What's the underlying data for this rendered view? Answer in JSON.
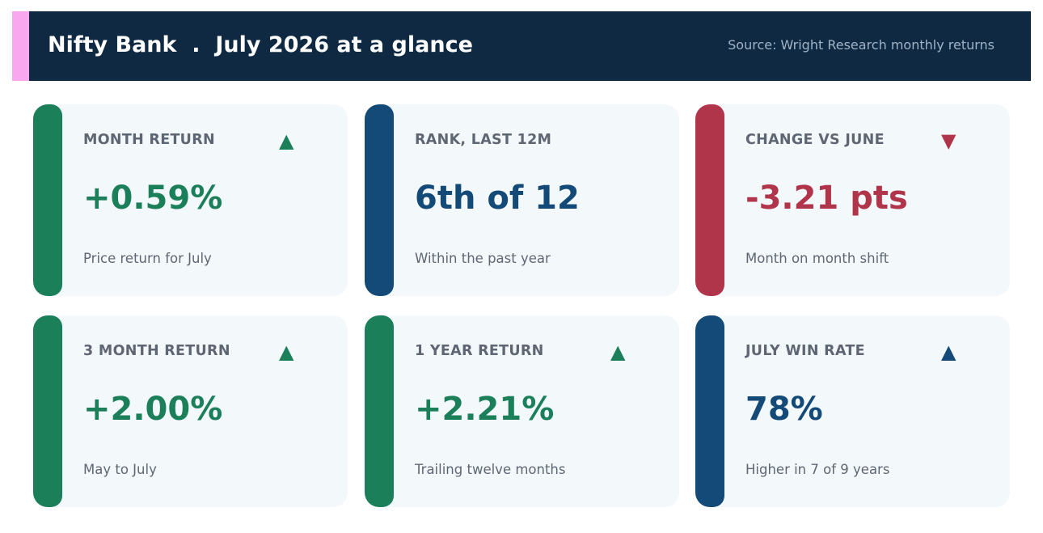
{
  "header": {
    "title": "Nifty Bank  .  July 2026 at a glance",
    "source": "Source: Wright Research monthly returns",
    "accent_color": "#f9a8f0",
    "background_color": "#0f2942"
  },
  "cards": [
    {
      "label": "MONTH RETURN",
      "value": "+0.59%",
      "subtitle": "Price return for July",
      "arrow": "▲",
      "arrow_icon": "triangle-up-icon",
      "color": "#1b7f5a"
    },
    {
      "label": "RANK, LAST 12M",
      "value": "6th of 12",
      "subtitle": "Within the past year",
      "arrow": "",
      "arrow_icon": "",
      "color": "#144a78"
    },
    {
      "label": "CHANGE VS JUNE",
      "value": "-3.21 pts",
      "subtitle": "Month on month shift",
      "arrow": "▼",
      "arrow_icon": "triangle-down-icon",
      "color": "#b0354a"
    },
    {
      "label": "3 MONTH RETURN",
      "value": "+2.00%",
      "subtitle": "May to July",
      "arrow": "▲",
      "arrow_icon": "triangle-up-icon",
      "color": "#1b7f5a"
    },
    {
      "label": "1 YEAR RETURN",
      "value": "+2.21%",
      "subtitle": "Trailing twelve months",
      "arrow": "▲",
      "arrow_icon": "triangle-up-icon",
      "color": "#1b7f5a"
    },
    {
      "label": "JULY WIN RATE",
      "value": "78%",
      "subtitle": "Higher in 7 of 9 years",
      "arrow": "▲",
      "arrow_icon": "triangle-up-icon",
      "color": "#144a78"
    }
  ]
}
